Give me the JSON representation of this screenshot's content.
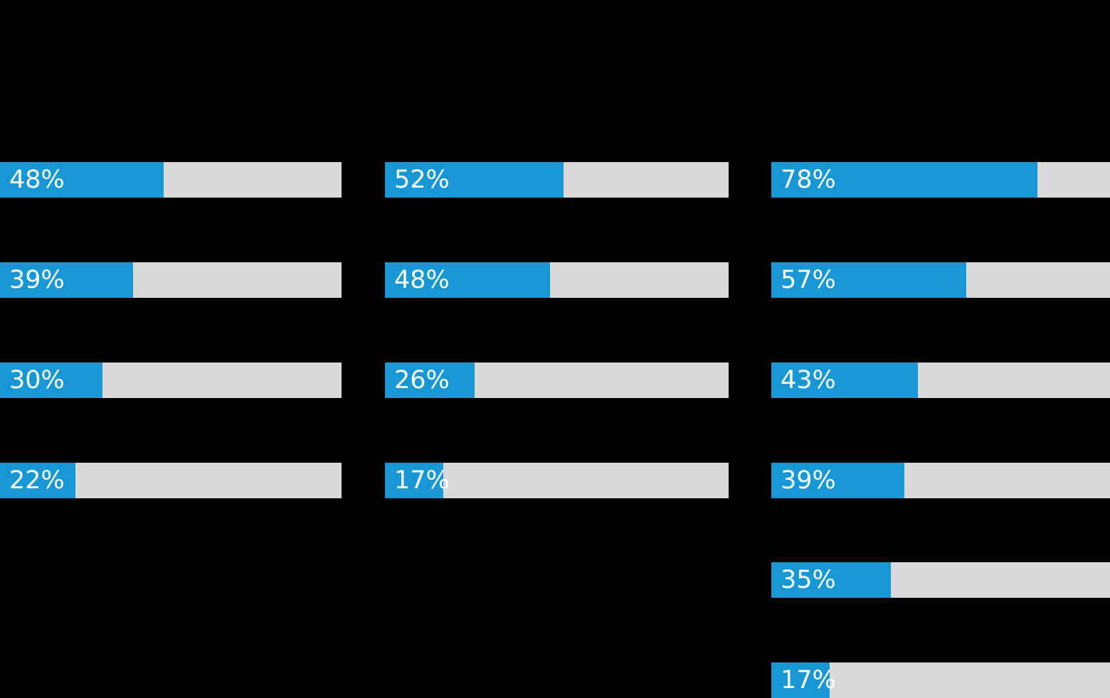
{
  "chart_data": {
    "type": "bar",
    "orientation": "horizontal",
    "value_unit": "%",
    "value_range": [
      0,
      100
    ],
    "grid": false,
    "legend": false,
    "background_color": "#000000",
    "bar_fill_color": "#1798d4",
    "bar_track_color": "#d9d9d9",
    "label_color": "#ffffff",
    "groups": [
      {
        "values": [
          48,
          39,
          30,
          22
        ],
        "labels": [
          "48%",
          "39%",
          "30%",
          "22%"
        ]
      },
      {
        "values": [
          52,
          48,
          26,
          17
        ],
        "labels": [
          "52%",
          "48%",
          "26%",
          "17%"
        ]
      },
      {
        "values": [
          78,
          57,
          43,
          39,
          35,
          17
        ],
        "labels": [
          "78%",
          "57%",
          "43%",
          "39%",
          "35%",
          "17%"
        ]
      }
    ]
  }
}
